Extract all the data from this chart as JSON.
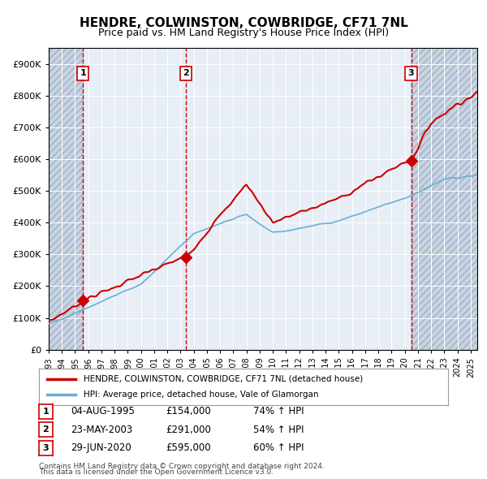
{
  "title": "HENDRE, COLWINSTON, COWBRIDGE, CF71 7NL",
  "subtitle": "Price paid vs. HM Land Registry's House Price Index (HPI)",
  "legend_line1": "HENDRE, COLWINSTON, COWBRIDGE, CF71 7NL (detached house)",
  "legend_line2": "HPI: Average price, detached house, Vale of Glamorgan",
  "footer1": "Contains HM Land Registry data © Crown copyright and database right 2024.",
  "footer2": "This data is licensed under the Open Government Licence v3.0.",
  "transactions": [
    {
      "num": 1,
      "date": "04-AUG-1995",
      "date_float": 1995.59,
      "price": 154000,
      "pct": "74%",
      "dir": "↑"
    },
    {
      "num": 2,
      "date": "23-MAY-2003",
      "date_float": 2003.39,
      "price": 291000,
      "pct": "54%",
      "dir": "↑"
    },
    {
      "num": 3,
      "date": "29-JUN-2020",
      "date_float": 2020.49,
      "price": 595000,
      "pct": "60%",
      "dir": "↑"
    }
  ],
  "hpi_color": "#6baed6",
  "price_color": "#cc0000",
  "vline_color": "#cc0000",
  "bg_hatch_color": "#d0d8e8",
  "plot_bg": "#e8eef5",
  "grid_color": "#ffffff",
  "ylim": [
    0,
    950000
  ],
  "yticks": [
    0,
    100000,
    200000,
    300000,
    400000,
    500000,
    600000,
    700000,
    800000,
    900000
  ],
  "xlim_start": 1993.0,
  "xlim_end": 2025.5
}
